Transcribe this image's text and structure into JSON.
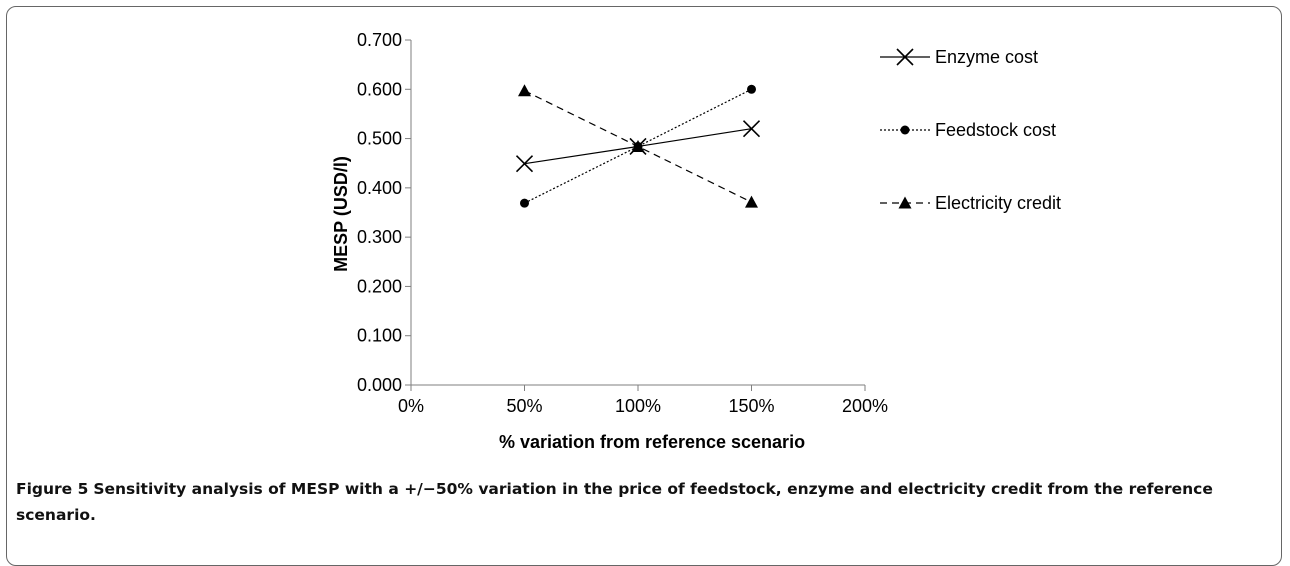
{
  "chart_data": {
    "type": "line",
    "xlabel": "% variation from reference scenario",
    "ylabel": "MESP (USD/l)",
    "x_ticks": [
      "0%",
      "50%",
      "100%",
      "150%",
      "200%"
    ],
    "y_ticks": [
      "0.000",
      "0.100",
      "0.200",
      "0.300",
      "0.400",
      "0.500",
      "0.600",
      "0.700"
    ],
    "xlim": [
      0,
      200
    ],
    "ylim": [
      0,
      0.7
    ],
    "x": [
      50,
      100,
      150
    ],
    "series": [
      {
        "name": "Enzyme cost",
        "marker": "x",
        "line_style": "solid",
        "values": [
          0.449,
          0.484,
          0.52
        ]
      },
      {
        "name": "Feedstock cost",
        "marker": "circle",
        "line_style": "dotted",
        "values": [
          0.369,
          0.484,
          0.6
        ]
      },
      {
        "name": "Electricity credit",
        "marker": "triangle",
        "line_style": "dashed",
        "values": [
          0.597,
          0.484,
          0.371
        ]
      }
    ],
    "grid": false,
    "legend_position": "right",
    "line_color": "#000000"
  },
  "caption": {
    "label": "Figure 5",
    "text": "Sensitivity analysis of MESP with a +/−50% variation in the price of feedstock, enzyme and electricity credit from the reference scenario."
  }
}
